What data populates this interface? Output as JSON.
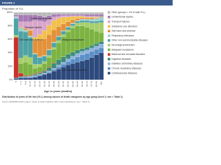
{
  "figure_label": "FIGURE 2",
  "caption": "Distribution of years of life lost (YLL) among causes of death categories by age group (level 2, see > Table 1)",
  "source": "Source: BURDEN 2020 project, cause of death statistics 2017 (own calculations; see > Table 3)",
  "chart_data": {
    "type": "stacked-bar",
    "y_label": "Proportion of YLL",
    "x_label": "Age in years (deaths)",
    "ylim": [
      0,
      100
    ],
    "yticks": [
      {
        "value": 0,
        "label": "0%"
      },
      {
        "value": 20,
        "label": "20%"
      },
      {
        "value": 40,
        "label": "40%"
      },
      {
        "value": 60,
        "label": "60%"
      },
      {
        "value": 80,
        "label": "80%"
      },
      {
        "value": 100,
        "label": "100%"
      }
    ],
    "categories": [
      "0",
      "1–4",
      "5–9",
      "10–14",
      "15–19",
      "20–24",
      "25–29",
      "30–34",
      "35–39",
      "40–44",
      "45–49",
      "50–54",
      "55–59",
      "60–64",
      "65–69",
      "70–74",
      "75–79",
      "80–84",
      "85+"
    ],
    "annotations": [
      "Unintentional injuries",
      "Transport injuries",
      "Self-harm and violence",
      "Malignant neoplasms",
      "Cardiovascular diseases"
    ],
    "series": [
      {
        "name": "Cardiovascular diseases",
        "color": "#2e4a7d",
        "values": [
          2,
          3,
          3,
          3,
          4,
          6,
          8,
          10,
          13,
          16,
          19,
          22,
          24,
          26,
          28,
          30,
          33,
          37,
          40
        ]
      },
      {
        "name": "Chronic respiratory diseases",
        "color": "#5b8fc7",
        "values": [
          0,
          1,
          1,
          1,
          1,
          1,
          1,
          1,
          2,
          3,
          4,
          5,
          7,
          8,
          9,
          9,
          9,
          8,
          7
        ]
      },
      {
        "name": "Diabetes and kidney diseases",
        "color": "#8fb3dc",
        "values": [
          0,
          0,
          0,
          1,
          1,
          1,
          1,
          2,
          2,
          3,
          3,
          4,
          4,
          5,
          5,
          5,
          5,
          5,
          6
        ]
      },
      {
        "name": "Digestive diseases",
        "color": "#3d8c7a",
        "values": [
          1,
          1,
          1,
          1,
          2,
          2,
          3,
          5,
          7,
          8,
          8,
          7,
          6,
          5,
          4,
          4,
          4,
          4,
          4
        ]
      },
      {
        "name": "Maternal and neonatal disorders",
        "color": "#c8312f",
        "values": [
          60,
          5,
          1,
          1,
          1,
          1,
          1,
          1,
          1,
          0,
          0,
          0,
          0,
          0,
          0,
          0,
          0,
          0,
          0
        ]
      },
      {
        "name": "Malignant neoplasms",
        "color": "#7cb342",
        "values": [
          1,
          14,
          20,
          16,
          8,
          8,
          10,
          14,
          20,
          25,
          30,
          33,
          36,
          36,
          34,
          30,
          24,
          18,
          13
        ]
      },
      {
        "name": "Neurological disorders",
        "color": "#a5cf6b",
        "values": [
          2,
          8,
          10,
          10,
          6,
          4,
          3,
          3,
          3,
          3,
          3,
          3,
          3,
          4,
          5,
          7,
          9,
          12,
          15
        ]
      },
      {
        "name": "Other non-communicable diseases",
        "color": "#4fa3a5",
        "values": [
          25,
          40,
          35,
          30,
          15,
          10,
          8,
          8,
          7,
          6,
          5,
          4,
          3,
          3,
          3,
          3,
          3,
          3,
          3
        ]
      },
      {
        "name": "Respiratory infections",
        "color": "#9ad0cf",
        "values": [
          2,
          5,
          3,
          2,
          1,
          1,
          1,
          1,
          1,
          1,
          1,
          1,
          1,
          1,
          2,
          2,
          3,
          4,
          5
        ]
      },
      {
        "name": "Self-harm and violence",
        "color": "#e3913a",
        "values": [
          0,
          1,
          2,
          8,
          20,
          25,
          25,
          22,
          18,
          14,
          10,
          7,
          5,
          3,
          2,
          2,
          2,
          1,
          1
        ]
      },
      {
        "name": "Substance use disorders",
        "color": "#f2c04c",
        "values": [
          0,
          0,
          0,
          1,
          4,
          8,
          12,
          14,
          14,
          12,
          10,
          7,
          5,
          3,
          2,
          1,
          1,
          1,
          0
        ]
      },
      {
        "name": "Transport injuries",
        "color": "#d9a6c9",
        "values": [
          1,
          8,
          10,
          12,
          25,
          20,
          13,
          8,
          5,
          3,
          2,
          2,
          1,
          1,
          1,
          1,
          1,
          1,
          0
        ]
      },
      {
        "name": "Unintentional injuries",
        "color": "#a77bb5",
        "values": [
          2,
          10,
          10,
          10,
          8,
          8,
          7,
          6,
          4,
          3,
          2,
          2,
          2,
          2,
          2,
          3,
          3,
          3,
          3
        ]
      },
      {
        "name": "Other (groups < 1% of total YLL)",
        "color": "#b9b9b9",
        "values": [
          4,
          4,
          4,
          4,
          4,
          5,
          7,
          5,
          3,
          3,
          3,
          3,
          3,
          3,
          3,
          3,
          3,
          3,
          3
        ]
      }
    ]
  }
}
